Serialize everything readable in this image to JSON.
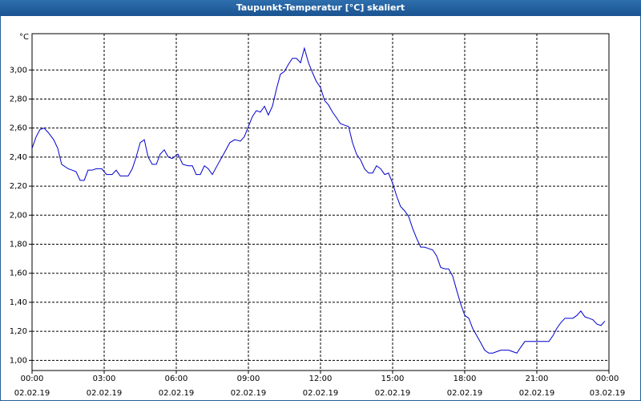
{
  "chart_data": {
    "type": "line",
    "title": "Taupunkt-Temperatur [°C] skaliert",
    "y_label": "°C",
    "x": [
      0,
      0.17,
      0.33,
      0.5,
      0.67,
      0.9,
      1.07,
      1.23,
      1.5,
      1.67,
      1.83,
      2,
      2.17,
      2.33,
      2.5,
      2.67,
      2.9,
      3.1,
      3.33,
      3.5,
      3.67,
      4,
      4.17,
      4.33,
      4.5,
      4.67,
      4.83,
      5,
      5.17,
      5.33,
      5.5,
      5.67,
      5.83,
      6.07,
      6.27,
      6.5,
      6.67,
      6.83,
      7,
      7.17,
      7.33,
      7.5,
      7.73,
      8,
      8.23,
      8.43,
      8.67,
      8.83,
      9,
      9.17,
      9.33,
      9.5,
      9.67,
      9.83,
      10,
      10.17,
      10.33,
      10.5,
      10.67,
      10.83,
      11,
      11.17,
      11.33,
      11.5,
      11.67,
      11.83,
      12,
      12.17,
      12.33,
      12.5,
      12.67,
      12.83,
      13,
      13.17,
      13.33,
      13.5,
      13.67,
      13.83,
      14,
      14.17,
      14.33,
      14.5,
      14.67,
      14.83,
      15,
      15.17,
      15.33,
      15.5,
      15.67,
      15.83,
      16,
      16.17,
      16.33,
      16.5,
      16.67,
      16.83,
      17,
      17.17,
      17.33,
      17.5,
      17.67,
      17.83,
      18,
      18.17,
      18.33,
      18.5,
      18.67,
      18.83,
      19,
      19.17,
      19.33,
      19.5,
      19.67,
      19.83,
      20,
      20.17,
      20.33,
      20.5,
      20.67,
      21,
      21.33,
      21.5,
      21.67,
      21.83,
      22,
      22.17,
      22.33,
      22.5,
      22.67,
      22.83,
      23,
      23.17,
      23.33,
      23.5,
      23.67,
      23.83
    ],
    "series": [
      {
        "name": "Taupunkt-Temperatur",
        "color": "#0000cc",
        "values": [
          2.46,
          2.54,
          2.59,
          2.6,
          2.57,
          2.52,
          2.46,
          2.35,
          2.32,
          2.31,
          2.3,
          2.24,
          2.24,
          2.31,
          2.31,
          2.32,
          2.32,
          2.28,
          2.28,
          2.31,
          2.27,
          2.27,
          2.32,
          2.4,
          2.5,
          2.52,
          2.4,
          2.35,
          2.35,
          2.42,
          2.45,
          2.4,
          2.39,
          2.42,
          2.35,
          2.34,
          2.34,
          2.28,
          2.28,
          2.34,
          2.32,
          2.28,
          2.35,
          2.43,
          2.5,
          2.52,
          2.51,
          2.54,
          2.61,
          2.68,
          2.72,
          2.71,
          2.75,
          2.69,
          2.75,
          2.87,
          2.97,
          2.99,
          3.04,
          3.08,
          3.08,
          3.05,
          3.15,
          3.05,
          2.98,
          2.92,
          2.88,
          2.79,
          2.76,
          2.71,
          2.67,
          2.63,
          2.62,
          2.61,
          2.5,
          2.42,
          2.38,
          2.32,
          2.29,
          2.29,
          2.34,
          2.32,
          2.28,
          2.29,
          2.22,
          2.13,
          2.06,
          2.03,
          1.99,
          1.91,
          1.84,
          1.78,
          1.78,
          1.77,
          1.76,
          1.72,
          1.64,
          1.63,
          1.63,
          1.58,
          1.48,
          1.39,
          1.31,
          1.29,
          1.22,
          1.17,
          1.12,
          1.07,
          1.05,
          1.05,
          1.06,
          1.07,
          1.07,
          1.07,
          1.06,
          1.05,
          1.09,
          1.13,
          1.13,
          1.13,
          1.13,
          1.13,
          1.17,
          1.22,
          1.26,
          1.29,
          1.29,
          1.29,
          1.31,
          1.34,
          1.3,
          1.29,
          1.28,
          1.25,
          1.24,
          1.27
        ]
      }
    ],
    "xlim": [
      0,
      24
    ],
    "xticks": [
      {
        "value": 0,
        "label": "00:00\n02.02.19"
      },
      {
        "value": 3,
        "label": "03:00\n02.02.19"
      },
      {
        "value": 6,
        "label": "06:00\n02.02.19"
      },
      {
        "value": 9,
        "label": "09:00\n02.02.19"
      },
      {
        "value": 12,
        "label": "12:00\n02.02.19"
      },
      {
        "value": 15,
        "label": "15:00\n02.02.19"
      },
      {
        "value": 18,
        "label": "18:00\n02.02.19"
      },
      {
        "value": 21,
        "label": "21:00\n02.02.19"
      },
      {
        "value": 24,
        "label": "00:00\n03.02.19"
      }
    ],
    "ylim": [
      0.93,
      3.25
    ],
    "yticks": [
      {
        "value": 1,
        "label": "1,00"
      },
      {
        "value": 1.2,
        "label": "1,20"
      },
      {
        "value": 1.4,
        "label": "1,40"
      },
      {
        "value": 1.6,
        "label": "1,60"
      },
      {
        "value": 1.8,
        "label": "1,80"
      },
      {
        "value": 2,
        "label": "2,00"
      },
      {
        "value": 2.2,
        "label": "2,20"
      },
      {
        "value": 2.4,
        "label": "2,40"
      },
      {
        "value": 2.6,
        "label": "2,60"
      },
      {
        "value": 2.8,
        "label": "2,80"
      },
      {
        "value": 3,
        "label": "3,00"
      }
    ],
    "grid": true
  }
}
